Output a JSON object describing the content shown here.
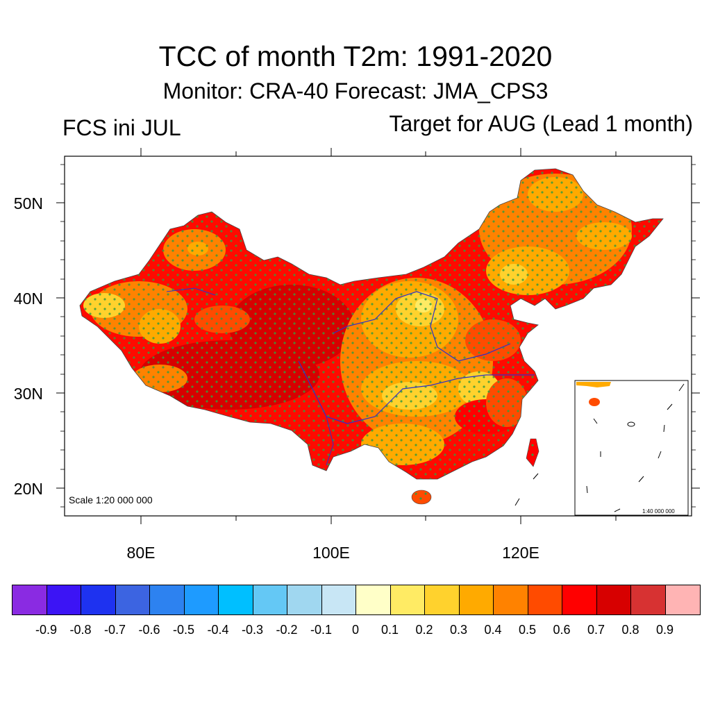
{
  "title": "TCC of month T2m: 1991-2020",
  "subtitle": "Monitor: CRA-40   Forecast: JMA_CPS3",
  "left_label": "FCS ini JUL",
  "right_label": "Target for AUG (Lead 1 month)",
  "map": {
    "lat_labels": [
      "50N",
      "40N",
      "30N",
      "20N"
    ],
    "lon_labels": [
      "80E",
      "100E",
      "120E"
    ],
    "scale_text": "Scale 1:20 000 000",
    "inset_scale_text": "1:40 000 000"
  },
  "colorbar": {
    "colors": [
      "#8a2be2",
      "#3c14f5",
      "#1e32f0",
      "#3c64e1",
      "#2d82f0",
      "#1e9bff",
      "#00bfff",
      "#64c8f5",
      "#a0d7f0",
      "#c8e6f5",
      "#ffffc8",
      "#ffeb64",
      "#ffd22d",
      "#ffaa00",
      "#ff8200",
      "#ff4b00",
      "#ff0000",
      "#d70000",
      "#d73232",
      "#ffb4b4"
    ],
    "labels": [
      "-0.9",
      "-0.8",
      "-0.7",
      "-0.6",
      "-0.5",
      "-0.4",
      "-0.3",
      "-0.2",
      "-0.1",
      "0",
      "0.1",
      "0.2",
      "0.3",
      "0.4",
      "0.5",
      "0.6",
      "0.7",
      "0.8",
      "0.9"
    ]
  }
}
